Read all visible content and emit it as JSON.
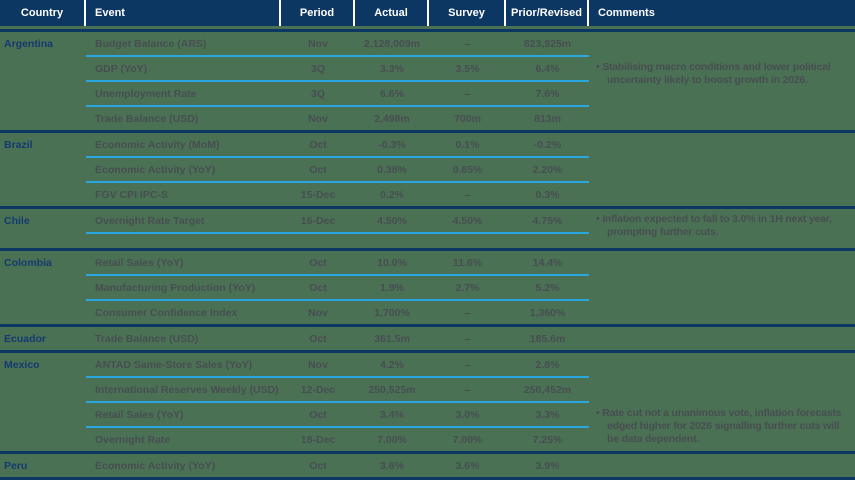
{
  "colors": {
    "background": "#4b7154",
    "navy": "#0d3763",
    "header_text": "#ffffff",
    "country_text": "#143a70",
    "body_text": "#474e52",
    "row_divider_blue": "#2aa7e0"
  },
  "table": {
    "headers": [
      "Country",
      "Event",
      "Period",
      "Actual",
      "Survey",
      "Prior/Revised",
      "Comments"
    ],
    "sections": [
      {
        "country": "Argentina",
        "rows": [
          {
            "event": "Budget Balance (ARS)",
            "period": "Nov",
            "actual": "2,128,009m",
            "survey": "–",
            "prior": "823,925m"
          },
          {
            "event": "GDP (YoY)",
            "period": "3Q",
            "actual": "3.3%",
            "survey": "3.5%",
            "prior": "6.4%"
          },
          {
            "event": "Unemployment Rate",
            "period": "3Q",
            "actual": "6.6%",
            "survey": "–",
            "prior": "7.6%"
          },
          {
            "event": "Trade Balance (USD)",
            "period": "Nov",
            "actual": "2,498m",
            "survey": "700m",
            "prior": "813m"
          }
        ],
        "comment": "Stabilising macro conditions and lower political uncertainty likely to boost growth in 2026.",
        "comment_row": 1
      },
      {
        "country": "Brazil",
        "rows": [
          {
            "event": "Economic Activity (MoM)",
            "period": "Oct",
            "actual": "-0.3%",
            "survey": "0.1%",
            "prior": "-0.2%"
          },
          {
            "event": "Economic Activity (YoY)",
            "period": "Oct",
            "actual": "0.38%",
            "survey": "0.85%",
            "prior": "2.20%"
          },
          {
            "event": "FGV CPI IPC-S",
            "period": "15-Dec",
            "actual": "0.2%",
            "survey": "–",
            "prior": "0.3%"
          }
        ]
      },
      {
        "country": "Chile",
        "rows": [
          {
            "event": "Overnight Rate Target",
            "period": "16-Dec",
            "actual": "4.50%",
            "survey": "4.50%",
            "prior": "4.75%"
          }
        ],
        "comment": "Inflation expected to fall to 3.0% in 1H next year, prompting further cuts.",
        "comment_row": 0,
        "trailing_line": true,
        "pad_bottom": 14
      },
      {
        "country": "Colombia",
        "rows": [
          {
            "event": "Retail Sales (YoY)",
            "period": "Oct",
            "actual": "10.0%",
            "survey": "11.6%",
            "prior": "14.4%"
          },
          {
            "event": "Manufacturing Production (YoY)",
            "period": "Oct",
            "actual": "1.9%",
            "survey": "2.7%",
            "prior": "5.2%"
          },
          {
            "event": "Consumer Confidence Index",
            "period": "Nov",
            "actual": "1,700%",
            "survey": "–",
            "prior": "1,360%"
          }
        ]
      },
      {
        "country": "Ecuador",
        "rows": [
          {
            "event": "Trade Balance (USD)",
            "period": "Oct",
            "actual": "361.5m",
            "survey": "–",
            "prior": "185.6m"
          }
        ]
      },
      {
        "country": "Mexico",
        "rows": [
          {
            "event": "ANTAD Same-Store Sales (YoY)",
            "period": "Nov",
            "actual": "4.2%",
            "survey": "–",
            "prior": "2.8%"
          },
          {
            "event": "International Reserves Weekly (USD)",
            "period": "12-Dec",
            "actual": "250,525m",
            "survey": "–",
            "prior": "250,452m"
          },
          {
            "event": "Retail Sales (YoY)",
            "period": "Oct",
            "actual": "3.4%",
            "survey": "3.0%",
            "prior": "3.3%"
          },
          {
            "event": "Overnight Rate",
            "period": "18-Dec",
            "actual": "7.00%",
            "survey": "7.00%",
            "prior": "7.25%"
          }
        ],
        "comment": "Rate cut not a unanimous vote, inflation forecasts edged higher for 2026 signalling further cuts will be data dependent.",
        "comment_row": 2
      },
      {
        "country": "Peru",
        "rows": [
          {
            "event": "Economic Activity (YoY)",
            "period": "Oct",
            "actual": "3.6%",
            "survey": "3.6%",
            "prior": "3.9%"
          }
        ]
      }
    ]
  }
}
